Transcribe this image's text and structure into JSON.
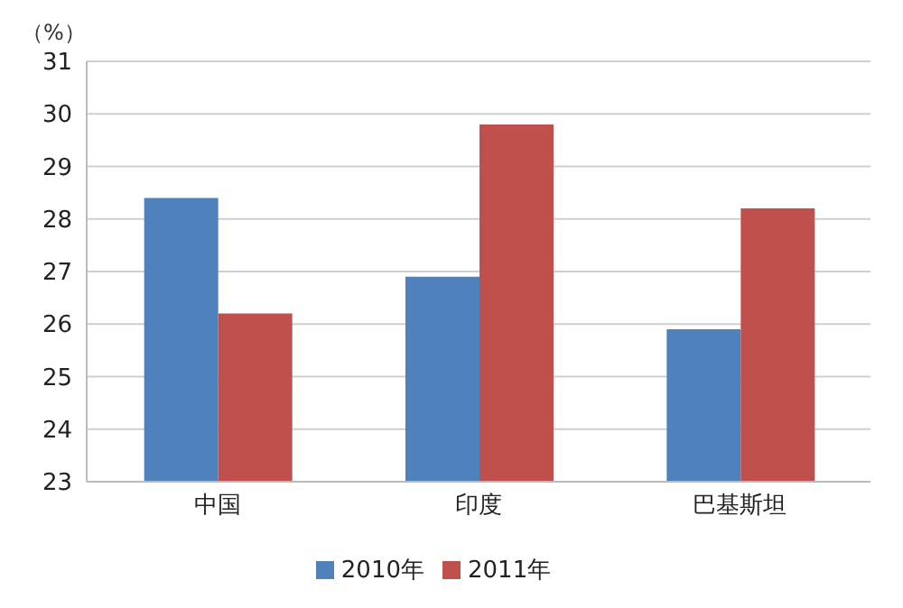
{
  "chart_data": {
    "type": "bar",
    "ylabel": "（%）",
    "categories": [
      "中国",
      "印度",
      "巴基斯坦"
    ],
    "series": [
      {
        "name": "2010年",
        "color": "#4f81bd",
        "values": [
          28.4,
          26.9,
          25.9
        ]
      },
      {
        "name": "2011年",
        "color": "#c0504d",
        "values": [
          26.2,
          29.8,
          28.2
        ]
      }
    ],
    "ylim": [
      23,
      31
    ],
    "yticks": [
      23,
      24,
      25,
      26,
      27,
      28,
      29,
      30,
      31
    ],
    "grid": "y",
    "legend": "bottom"
  }
}
